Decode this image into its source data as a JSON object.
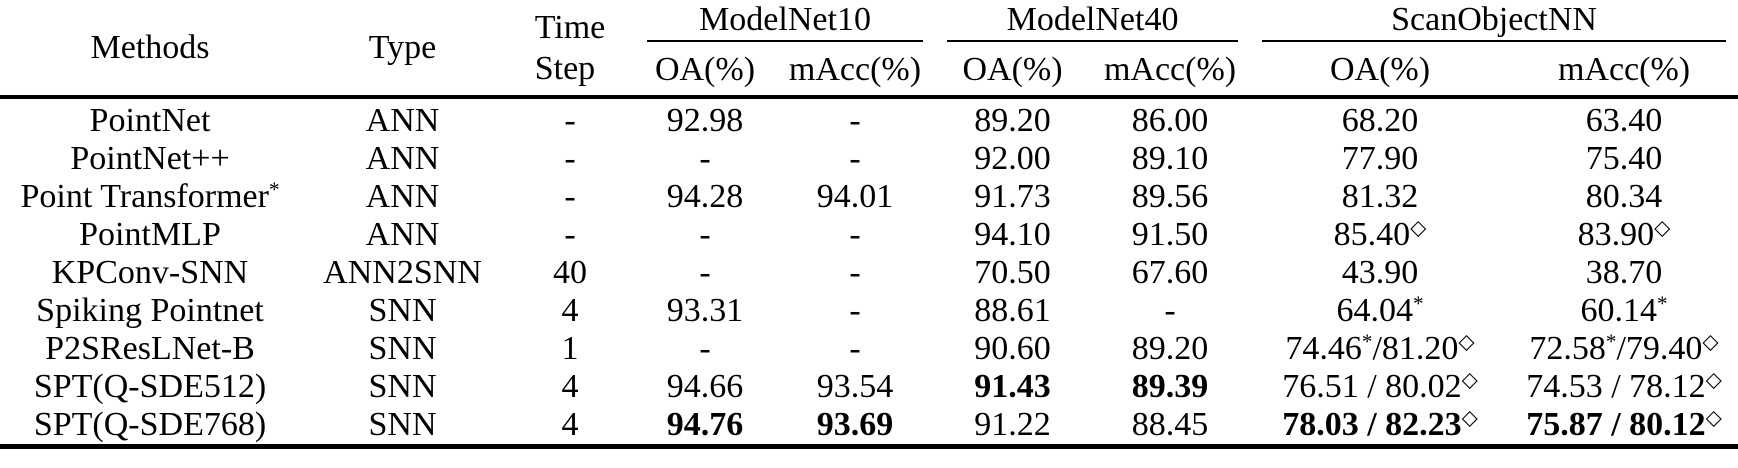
{
  "table": {
    "header": {
      "methods": "Methods",
      "type": "Type",
      "time_step": [
        "Time",
        "Step"
      ],
      "groups": [
        {
          "name": "ModelNet10",
          "cols": [
            "OA(%)",
            "mAcc(%)"
          ]
        },
        {
          "name": "ModelNet40",
          "cols": [
            "OA(%)",
            "mAcc(%)"
          ]
        },
        {
          "name": "ScanObjectNN",
          "cols": [
            "OA(%)",
            "mAcc(%)"
          ]
        }
      ]
    },
    "rows": [
      {
        "method": "PointNet",
        "type": "ANN",
        "time_step": "-",
        "values": [
          {
            "v": "92.98"
          },
          {
            "v": "-"
          },
          {
            "v": "89.20"
          },
          {
            "v": "86.00"
          },
          {
            "v": "68.20"
          },
          {
            "v": "63.40"
          }
        ]
      },
      {
        "method": "PointNet++",
        "type": "ANN",
        "time_step": "-",
        "values": [
          {
            "v": "-"
          },
          {
            "v": "-"
          },
          {
            "v": "92.00"
          },
          {
            "v": "89.10"
          },
          {
            "v": "77.90"
          },
          {
            "v": "75.40"
          }
        ]
      },
      {
        "method": "Point Transformer^*",
        "type": "ANN",
        "time_step": "-",
        "values": [
          {
            "v": "94.28"
          },
          {
            "v": "94.01"
          },
          {
            "v": "91.73"
          },
          {
            "v": "89.56"
          },
          {
            "v": "81.32"
          },
          {
            "v": "80.34"
          }
        ]
      },
      {
        "method": "PointMLP",
        "type": "ANN",
        "time_step": "-",
        "values": [
          {
            "v": "-"
          },
          {
            "v": "-"
          },
          {
            "v": "94.10"
          },
          {
            "v": "91.50"
          },
          {
            "v": "85.40^◇"
          },
          {
            "v": "83.90^◇"
          }
        ]
      },
      {
        "method": "KPConv-SNN",
        "type": "ANN2SNN",
        "time_step": "40",
        "values": [
          {
            "v": "-"
          },
          {
            "v": "-"
          },
          {
            "v": "70.50"
          },
          {
            "v": "67.60"
          },
          {
            "v": "43.90"
          },
          {
            "v": "38.70"
          }
        ]
      },
      {
        "method": "Spiking Pointnet",
        "type": "SNN",
        "time_step": "4",
        "values": [
          {
            "v": "93.31"
          },
          {
            "v": "-"
          },
          {
            "v": "88.61"
          },
          {
            "v": "-"
          },
          {
            "v": "64.04^*"
          },
          {
            "v": "60.14^*"
          }
        ]
      },
      {
        "method": "P2SResLNet-B",
        "type": "SNN",
        "time_step": "1",
        "values": [
          {
            "v": "-"
          },
          {
            "v": "-"
          },
          {
            "v": "90.60"
          },
          {
            "v": "89.20"
          },
          {
            "v": "74.46^*/81.20^◇"
          },
          {
            "v": "72.58^*/79.40^◇"
          }
        ]
      },
      {
        "method": "SPT(Q-SDE512)",
        "type": "SNN",
        "time_step": "4",
        "values": [
          {
            "v": "94.66"
          },
          {
            "v": "93.54"
          },
          {
            "v": "91.43",
            "bold": true
          },
          {
            "v": "89.39",
            "bold": true
          },
          {
            "v": "76.51 / 80.02^◇"
          },
          {
            "v": "74.53 / 78.12^◇"
          }
        ]
      },
      {
        "method": "SPT(Q-SDE768)",
        "type": "SNN",
        "time_step": "4",
        "values": [
          {
            "v": "94.76",
            "bold": true
          },
          {
            "v": "93.69",
            "bold": true
          },
          {
            "v": "91.22"
          },
          {
            "v": "88.45"
          },
          {
            "v": "78.03 / 82.23^◇",
            "bold": true
          },
          {
            "v": "75.87 / 80.12^◇",
            "bold": true
          }
        ]
      }
    ]
  }
}
